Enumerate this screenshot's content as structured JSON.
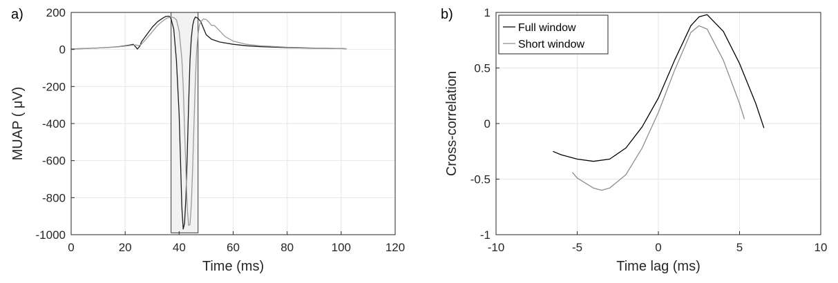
{
  "chart_data": [
    {
      "panel_label": "a)",
      "type": "line",
      "xlabel": "Time (ms)",
      "ylabel": "MUAP ( μV)",
      "xlim": [
        0,
        120
      ],
      "ylim": [
        -1000,
        200
      ],
      "xticks": [
        0,
        20,
        40,
        60,
        80,
        100,
        120
      ],
      "yticks": [
        -1000,
        -800,
        -600,
        -400,
        -200,
        0,
        200
      ],
      "grid": true,
      "highlight_box": {
        "x": [
          37,
          47
        ],
        "y": [
          -990,
          200
        ],
        "fill": "#f2f2f2"
      },
      "series": [
        {
          "color": "#1a1a1a",
          "x": [
            0,
            5,
            10,
            15,
            18,
            20,
            22,
            23,
            24,
            24.5,
            25,
            25.5,
            26,
            28,
            30,
            32,
            34,
            35,
            36,
            36.5,
            37,
            38,
            39,
            40,
            40.5,
            41,
            41.5,
            42,
            42.5,
            43,
            43.5,
            44,
            44.5,
            45,
            45.5,
            46,
            47,
            48,
            49,
            50,
            52,
            55,
            60,
            65,
            70,
            80,
            90,
            100,
            102
          ],
          "y": [
            3,
            5,
            8,
            12,
            16,
            20,
            25,
            28,
            12,
            2,
            10,
            20,
            40,
            80,
            120,
            150,
            170,
            178,
            180,
            178,
            165,
            110,
            -60,
            -350,
            -600,
            -850,
            -970,
            -940,
            -800,
            -560,
            -300,
            -60,
            60,
            130,
            160,
            175,
            168,
            150,
            115,
            80,
            55,
            40,
            28,
            20,
            15,
            10,
            7,
            5,
            4
          ]
        },
        {
          "color": "#9a9a9a",
          "x": [
            0,
            5,
            10,
            15,
            18,
            20,
            22,
            24,
            25,
            26,
            28,
            30,
            32,
            34,
            35,
            36,
            37,
            38,
            39,
            40,
            41,
            41.5,
            42,
            42.5,
            43,
            43.5,
            44,
            44.5,
            45,
            45.5,
            46,
            46.5,
            47,
            47.5,
            48,
            49,
            50,
            51,
            52,
            53,
            54,
            55,
            57,
            60,
            65,
            70,
            80,
            90,
            100,
            102
          ],
          "y": [
            3,
            5,
            8,
            12,
            15,
            18,
            22,
            25,
            20,
            28,
            60,
            95,
            130,
            155,
            165,
            172,
            175,
            172,
            160,
            100,
            -50,
            -200,
            -420,
            -660,
            -860,
            -950,
            -945,
            -840,
            -640,
            -400,
            -170,
            0,
            80,
            130,
            150,
            165,
            162,
            148,
            130,
            130,
            115,
            100,
            70,
            45,
            28,
            20,
            12,
            8,
            5,
            4
          ]
        }
      ]
    },
    {
      "panel_label": "b)",
      "type": "line",
      "xlabel": "Time lag (ms)",
      "ylabel": "Cross-correlation",
      "xlim": [
        -10,
        10
      ],
      "ylim": [
        -1,
        1
      ],
      "xticks": [
        -10,
        -5,
        0,
        5,
        10
      ],
      "yticks": [
        -1,
        -0.5,
        0,
        0.5,
        1
      ],
      "ytick_labels": [
        "-1",
        "-0.5",
        "0",
        "0.5",
        "1"
      ],
      "grid": true,
      "legend_position": "top-left",
      "series": [
        {
          "name": "Full window",
          "color": "#000000",
          "x": [
            -6.5,
            -6,
            -5,
            -4,
            -3,
            -2,
            -1,
            0,
            1,
            2,
            2.5,
            3,
            4,
            5,
            6,
            6.5
          ],
          "y": [
            -0.25,
            -0.28,
            -0.32,
            -0.34,
            -0.32,
            -0.22,
            -0.03,
            0.23,
            0.57,
            0.88,
            0.96,
            0.98,
            0.83,
            0.54,
            0.18,
            -0.04
          ]
        },
        {
          "name": "Short window",
          "color": "#8c8c8c",
          "x": [
            -5.3,
            -5,
            -4,
            -3.5,
            -3,
            -2,
            -1,
            0,
            1,
            2,
            2.5,
            3,
            4,
            5,
            5.3
          ],
          "y": [
            -0.44,
            -0.49,
            -0.58,
            -0.6,
            -0.58,
            -0.46,
            -0.22,
            0.1,
            0.48,
            0.82,
            0.88,
            0.85,
            0.57,
            0.18,
            0.04
          ]
        }
      ]
    }
  ]
}
